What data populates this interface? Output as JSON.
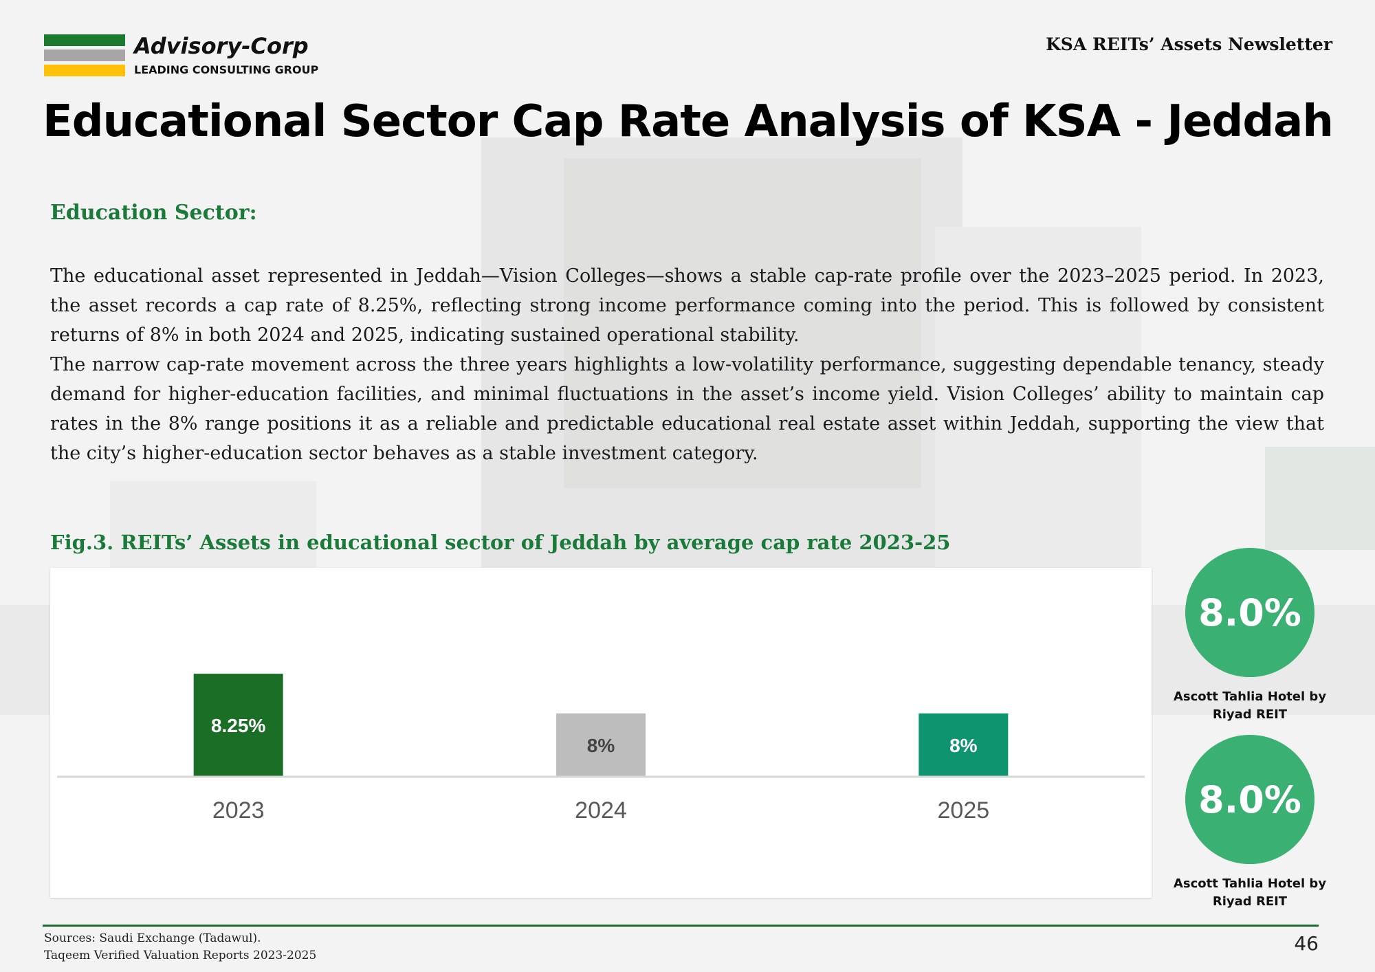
{
  "header": {
    "brand_name": "Advisory-Corp",
    "brand_tagline": "LEADING CONSULTING GROUP",
    "logo_colors": [
      "#1b7a2e",
      "#a6a6a6",
      "#ffc107"
    ],
    "newsletter_title": "KSA REITs’ Assets Newsletter"
  },
  "page_title": "Educational Sector Cap Rate Analysis of KSA - Jeddah",
  "section": {
    "heading": "Education Sector:",
    "paragraphs": [
      "The educational asset represented in Jeddah—Vision Colleges—shows a stable cap-rate profile over the 2023–2025 period. In 2023, the asset records a cap rate of 8.25%, reflecting strong income performance coming into the period. This is followed by consistent returns of 8% in both 2024 and 2025, indicating sustained operational stability.",
      "The narrow cap-rate movement across the three years highlights a low-volatility performance, suggesting dependable tenancy, steady demand for higher-education facilities, and minimal fluctuations in the asset’s income yield. Vision Colleges’ ability to maintain cap rates in the 8% range positions it as a reliable and predictable educational real estate asset within Jeddah, supporting the view that the city’s higher-education sector behaves as a stable investment category."
    ]
  },
  "figure": {
    "caption": "Fig.3. REITs’ Assets in educational sector of Jeddah by average cap rate 2023-25"
  },
  "chart_data": {
    "type": "bar",
    "categories": [
      "2023",
      "2024",
      "2025"
    ],
    "values": [
      8.25,
      8,
      8
    ],
    "value_labels": [
      "8.25%",
      "8%",
      "8%"
    ],
    "bar_colors": [
      "#1a6e25",
      "#bdbdbd",
      "#0f9470"
    ],
    "label_colors": [
      "#ffffff",
      "#444444",
      "#ffffff"
    ],
    "ylim": [
      7.6,
      8.45
    ],
    "title": "",
    "xlabel": "",
    "ylabel": "",
    "grid": false,
    "legend": "none"
  },
  "stats": [
    {
      "value": "8.0%",
      "label_line1": "Ascott Tahlia Hotel by",
      "label_line2": "Riyad REIT"
    },
    {
      "value": "8.0%",
      "label_line1": "Ascott Tahlia Hotel by",
      "label_line2": "Riyad REIT"
    }
  ],
  "footer": {
    "source_line1": "Sources: Saudi Exchange (Tadawul).",
    "source_line2": "Taqeem Verified Valuation Reports 2023-2025",
    "page_number": "46"
  }
}
